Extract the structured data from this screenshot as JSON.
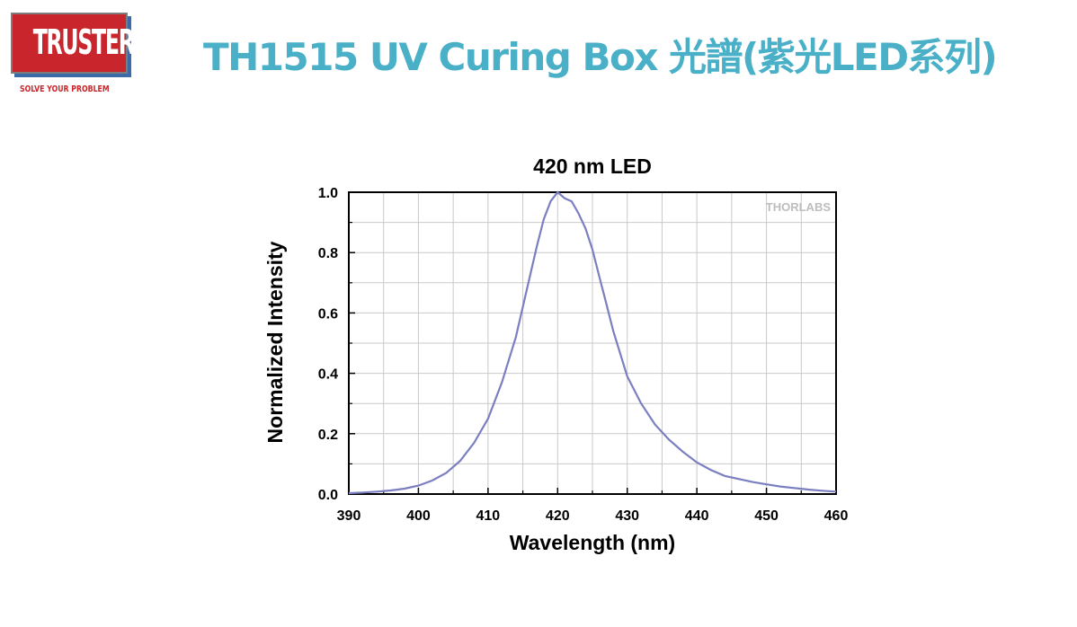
{
  "header": {
    "logo_text": "TRUSTER",
    "logo_tagline": "SOLVE YOUR PROBLEM",
    "title": "TH1515 UV Curing Box 光譜(紫光LED系列)"
  },
  "colors": {
    "brand_red": "#c8262c",
    "title_blue": "#4ab0c8",
    "curve": "#7a7fc0",
    "grid": "#c9c9c9"
  },
  "chart_data": {
    "type": "line",
    "title": "420 nm LED",
    "xlabel": "Wavelength (nm)",
    "ylabel": "Normalized Intensity",
    "watermark": "THORLABS",
    "xlim": [
      390,
      460
    ],
    "ylim": [
      0,
      1.0
    ],
    "xticks": [
      390,
      400,
      410,
      420,
      430,
      440,
      450,
      460
    ],
    "yticks": [
      0.0,
      0.2,
      0.4,
      0.6,
      0.8,
      1.0
    ],
    "ytick_labels": [
      "0.0",
      "0.2",
      "0.4",
      "0.6",
      "0.8",
      "1.0"
    ],
    "grid": true,
    "series": [
      {
        "x": [
          390,
          392,
          394,
          396,
          398,
          400,
          402,
          404,
          406,
          408,
          410,
          412,
          414,
          416,
          417,
          418,
          419,
          420,
          421,
          422,
          423,
          424,
          425,
          426,
          427,
          428,
          430,
          432,
          434,
          436,
          438,
          440,
          442,
          444,
          446,
          448,
          450,
          452,
          454,
          456,
          458,
          460
        ],
        "y": [
          0.003,
          0.005,
          0.008,
          0.012,
          0.018,
          0.028,
          0.045,
          0.07,
          0.11,
          0.17,
          0.25,
          0.37,
          0.52,
          0.72,
          0.82,
          0.91,
          0.97,
          1.0,
          0.98,
          0.97,
          0.93,
          0.88,
          0.81,
          0.72,
          0.63,
          0.54,
          0.39,
          0.3,
          0.23,
          0.18,
          0.14,
          0.105,
          0.08,
          0.06,
          0.05,
          0.04,
          0.032,
          0.025,
          0.02,
          0.015,
          0.011,
          0.008
        ]
      }
    ]
  }
}
